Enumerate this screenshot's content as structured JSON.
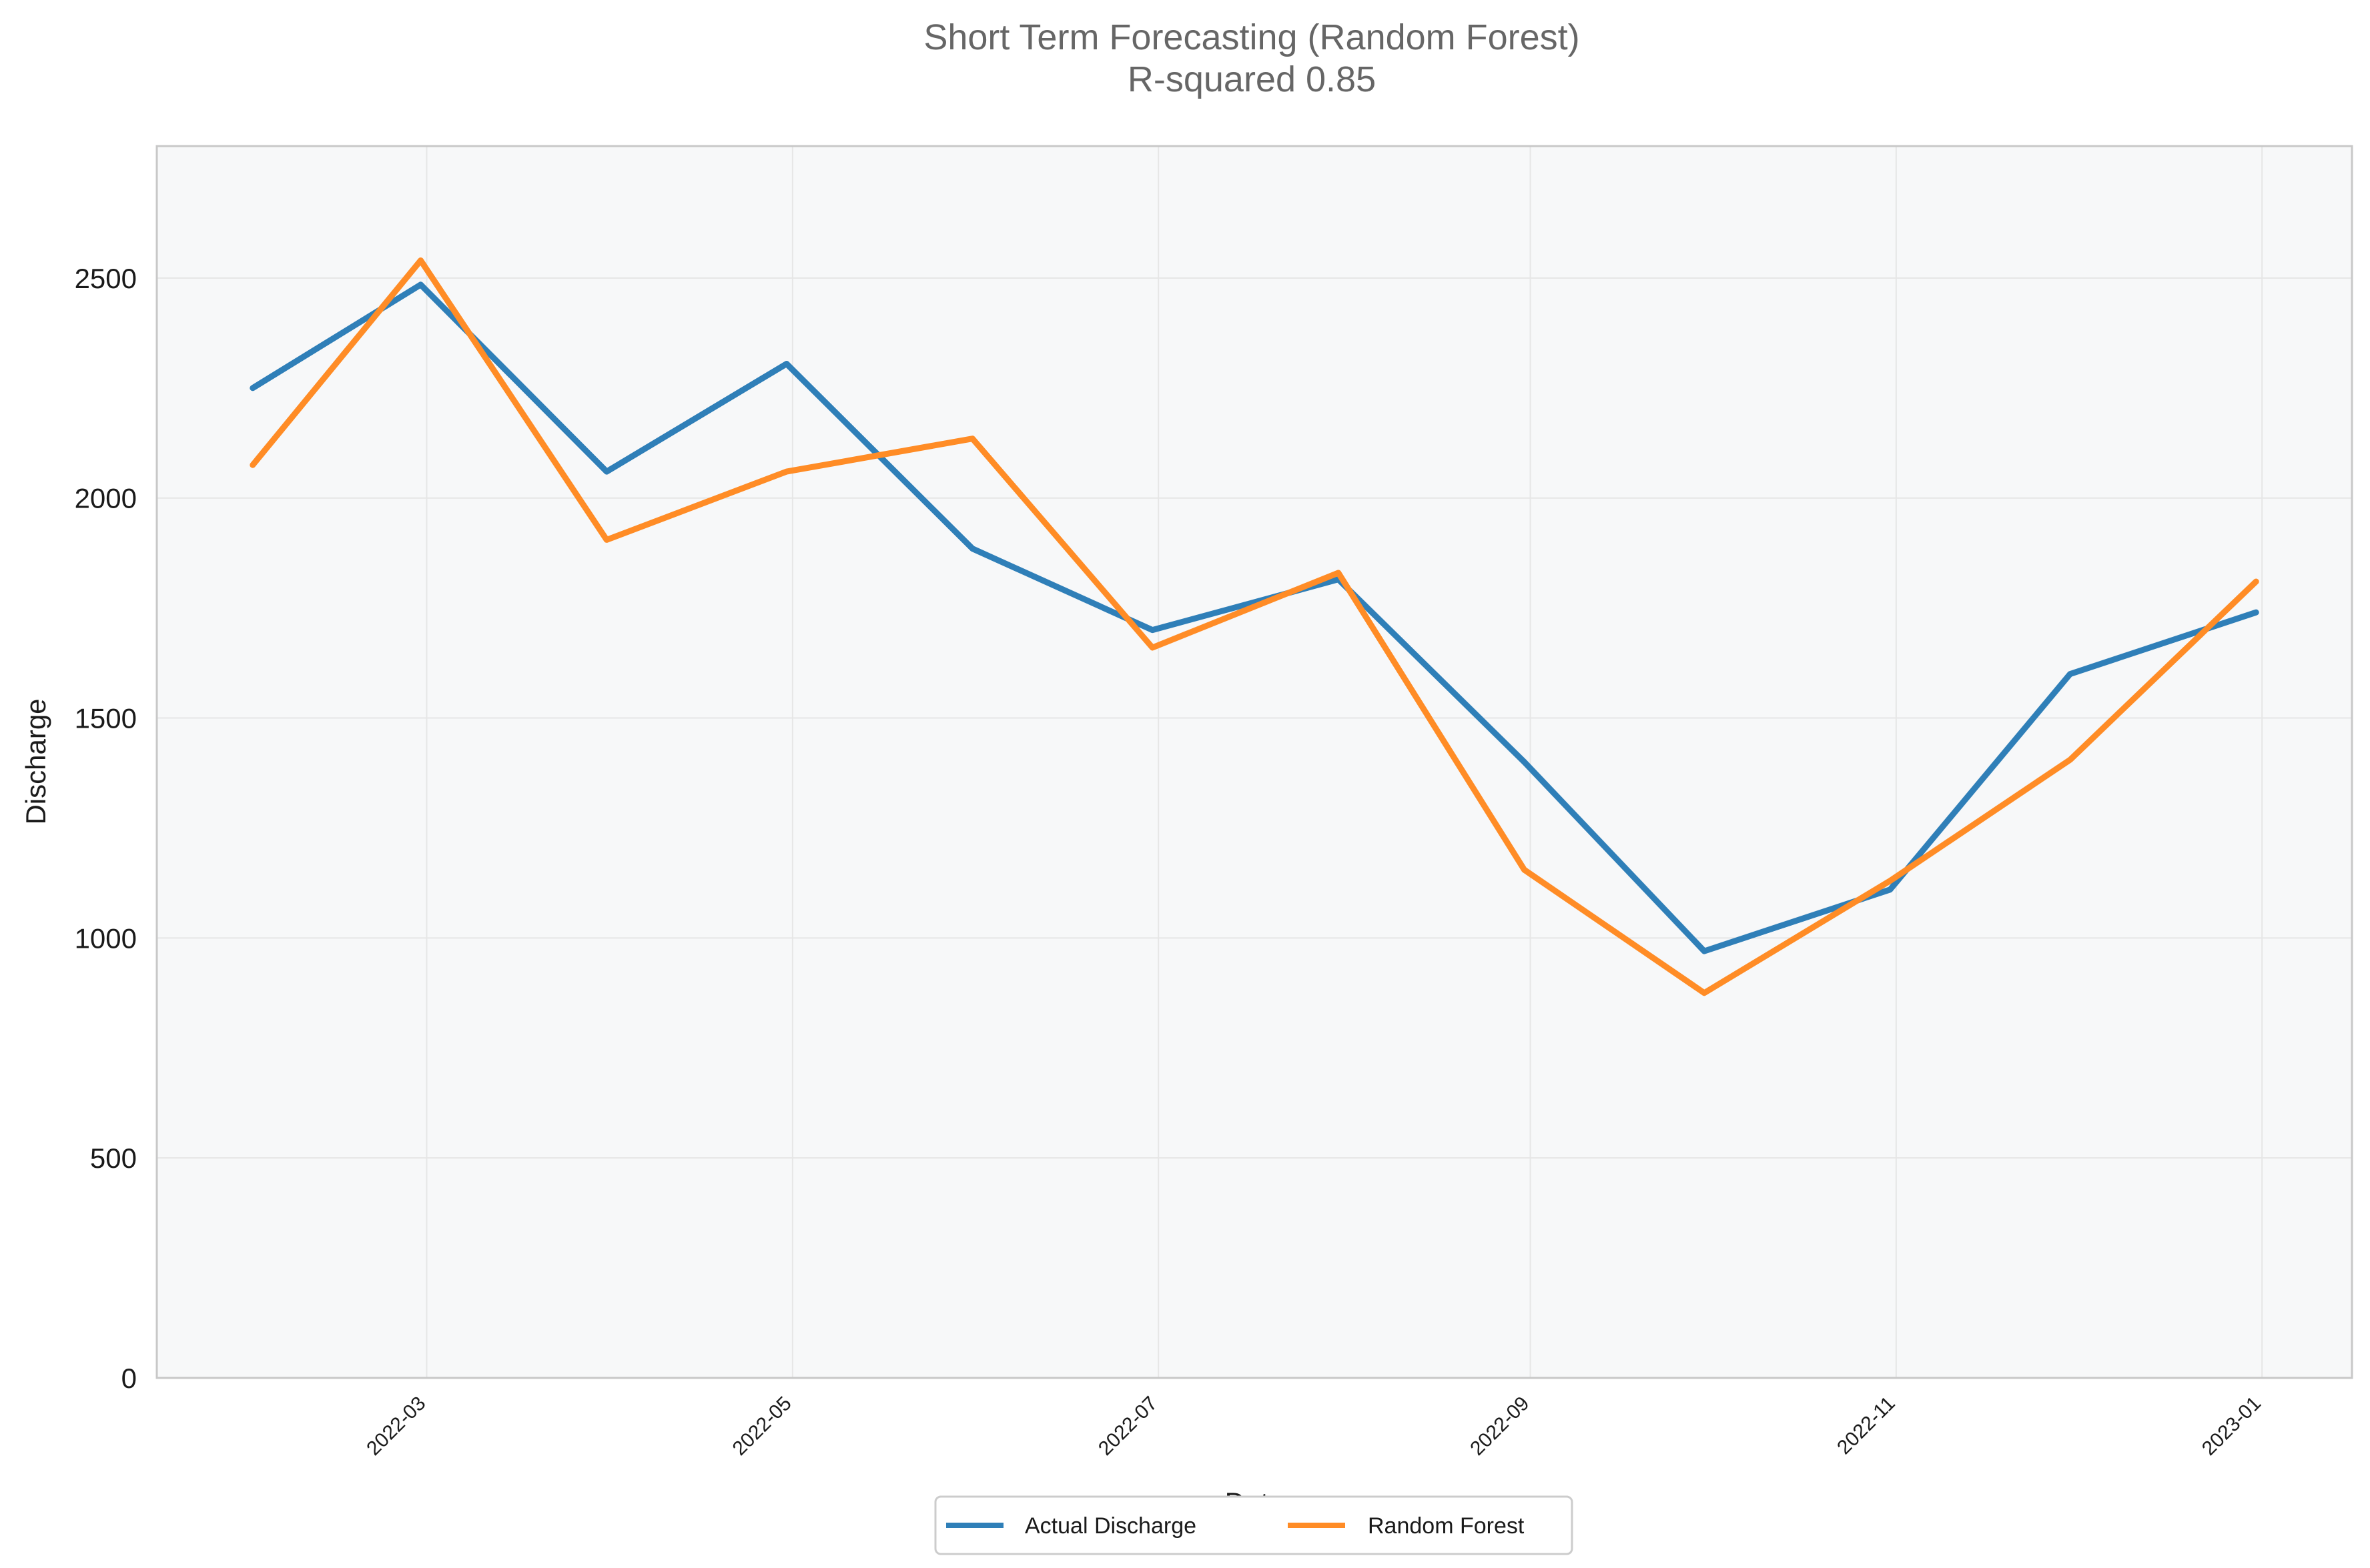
{
  "chart_data": {
    "type": "line",
    "title": "Short Term Forecasting (Random Forest)",
    "subtitle": "R-squared 0.85",
    "xlabel": "Date",
    "ylabel": "Discharge",
    "x": [
      "2022-01-31",
      "2022-02-28",
      "2022-03-31",
      "2022-04-30",
      "2022-05-31",
      "2022-06-30",
      "2022-07-31",
      "2022-08-31",
      "2022-09-30",
      "2022-10-31",
      "2022-11-30",
      "2022-12-31"
    ],
    "x_ticks": [
      "2022-03",
      "2022-05",
      "2022-07",
      "2022-09",
      "2022-11",
      "2023-01"
    ],
    "x_tick_dates": [
      "2022-03-01",
      "2022-05-01",
      "2022-07-01",
      "2022-09-01",
      "2022-11-01",
      "2023-01-01"
    ],
    "xlim": [
      "2022-01-15",
      "2023-01-16"
    ],
    "y_ticks": [
      0,
      500,
      1000,
      1500,
      2000,
      2500
    ],
    "ylim": [
      0,
      2800
    ],
    "grid": true,
    "legend_position": "bottom-center",
    "series": [
      {
        "name": "Actual Discharge",
        "color": "#2f7fb8",
        "values": [
          2250,
          2485,
          2060,
          2305,
          1885,
          1700,
          1815,
          1400,
          970,
          1110,
          1600,
          1740
        ]
      },
      {
        "name": "Random Forest",
        "color": "#ff8c26",
        "values": [
          2075,
          2540,
          1905,
          2060,
          2135,
          1660,
          1830,
          1155,
          875,
          1130,
          1405,
          1810
        ]
      }
    ]
  }
}
